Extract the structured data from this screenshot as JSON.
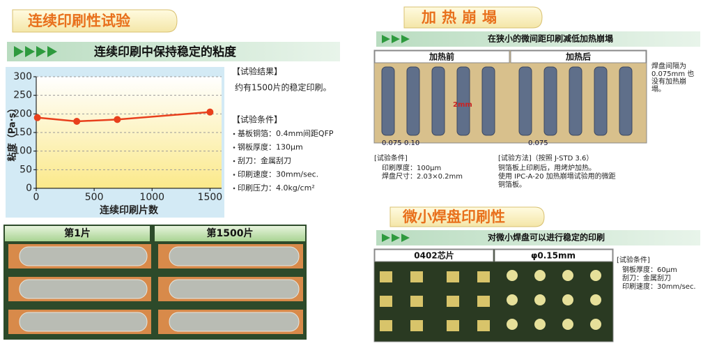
{
  "left": {
    "title": "连续印刷性试验",
    "banner": "连续印刷中保持稳定的粘度",
    "results": {
      "heading": "【试验结果】",
      "text": "约有1500片的稳定印刷。"
    },
    "conditions": {
      "heading": "【试验条件】",
      "items": [
        "基板铜箔：0.4mm间距QFP",
        "钢板厚度：130μm",
        "刮刀：金属刮刀",
        "印刷速度：30mm/sec.",
        "印刷压力：4.0kg/cm²"
      ]
    },
    "photos": [
      "第1片",
      "第1500片"
    ]
  },
  "chart_data": {
    "type": "line",
    "x": [
      10,
      350,
      700,
      1500
    ],
    "values": [
      190,
      180,
      185,
      205
    ],
    "color": "#e8401c",
    "xlim": [
      0,
      1600
    ],
    "xticks": [
      0,
      500,
      1000,
      1500
    ],
    "ylim": [
      0,
      300
    ],
    "yticks": [
      0,
      50,
      100,
      150,
      200,
      250,
      300
    ],
    "xlabel": "连续印刷片数",
    "ylabel": "粘度（Pa·s）",
    "grid": true
  },
  "right": {
    "slump": {
      "title": "加热崩塌",
      "banner": "在狭小的微间距印刷减低加热崩塌",
      "photos": [
        "加热前",
        "加热后"
      ],
      "photo_labels": [
        "0.075",
        "0.10",
        "2mm",
        "0.075"
      ],
      "note": [
        "焊盘间隔为",
        "0.075mm 也",
        "没有加热崩",
        "塌。"
      ],
      "conditions": {
        "heading": "[试验条件]",
        "items": [
          "印刷厚度：100μm",
          "焊盘尺寸：2.03×0.2mm"
        ]
      },
      "method": {
        "heading": "[试验方法]（按照 J-STD 3.6）",
        "lines": [
          "铜箔板上印刷后，用烤炉加热。",
          "使用 IPC-A-20 加热崩塌试验用的微距",
          "铜箔板。"
        ]
      }
    },
    "fine_pad": {
      "title": "微小焊盘印刷性",
      "banner": "对微小焊盘可以进行稳定的印刷",
      "photos": [
        "0402芯片",
        "φ0.15mm"
      ],
      "conditions": {
        "heading": "[试验条件]",
        "items": [
          "钢板厚度：60μm",
          "刮刀：金属刮刀",
          "印刷速度：30mm/sec."
        ]
      }
    }
  }
}
